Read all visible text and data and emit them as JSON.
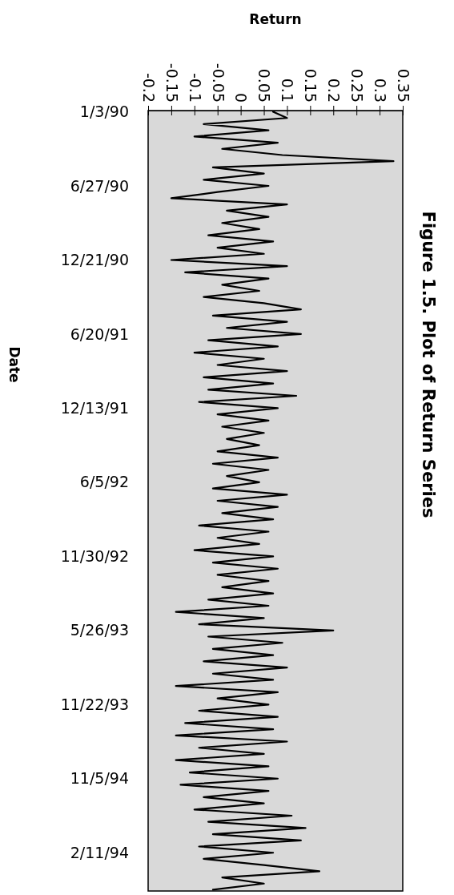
{
  "chart_data": {
    "type": "line",
    "orientation": "horizontal",
    "title": "Figure 1.5. Plot of Return Series",
    "xlabel": "Return",
    "ylabel": "Date",
    "categories": [
      "1/3/90",
      null,
      null,
      null,
      null,
      null,
      null,
      null,
      null,
      null,
      null,
      null,
      "6/27/90",
      null,
      null,
      null,
      null,
      null,
      null,
      null,
      null,
      null,
      null,
      null,
      "12/21/90",
      null,
      null,
      null,
      null,
      null,
      null,
      null,
      null,
      null,
      null,
      null,
      "6/20/91",
      null,
      null,
      null,
      null,
      null,
      null,
      null,
      null,
      null,
      null,
      null,
      "12/13/91",
      null,
      null,
      null,
      null,
      null,
      null,
      null,
      null,
      null,
      null,
      null,
      "6/5/92",
      null,
      null,
      null,
      null,
      null,
      null,
      null,
      null,
      null,
      null,
      null,
      "11/30/92",
      null,
      null,
      null,
      null,
      null,
      null,
      null,
      null,
      null,
      null,
      null,
      "5/26/93",
      null,
      null,
      null,
      null,
      null,
      null,
      null,
      null,
      null,
      null,
      null,
      "11/22/93",
      null,
      null,
      null,
      null,
      null,
      null,
      null,
      null,
      null,
      null,
      null,
      "11/5/94",
      null,
      null,
      null,
      null,
      null,
      null,
      null,
      null,
      null,
      null,
      null,
      "2/11/94",
      null,
      null,
      null,
      null,
      null,
      null
    ],
    "series": [
      {
        "color": "#000000",
        "values": [
          0.07,
          0.1,
          -0.08,
          0.06,
          -0.1,
          0.08,
          -0.04,
          0.09,
          0.33,
          -0.06,
          0.05,
          -0.08,
          0.06,
          -0.05,
          -0.15,
          0.1,
          -0.03,
          0.06,
          -0.04,
          0.04,
          -0.07,
          0.07,
          -0.05,
          0.05,
          -0.15,
          0.1,
          -0.12,
          0.06,
          -0.04,
          0.04,
          -0.08,
          0.05,
          0.13,
          -0.06,
          0.1,
          -0.03,
          0.13,
          -0.07,
          0.08,
          -0.1,
          0.05,
          -0.05,
          0.1,
          -0.08,
          0.07,
          -0.07,
          0.12,
          -0.09,
          0.08,
          -0.05,
          0.06,
          -0.04,
          0.05,
          -0.03,
          0.04,
          -0.05,
          0.08,
          -0.06,
          0.06,
          -0.03,
          0.04,
          -0.06,
          0.1,
          -0.05,
          0.08,
          -0.04,
          0.07,
          -0.09,
          0.06,
          -0.05,
          0.04,
          -0.1,
          0.07,
          -0.06,
          0.08,
          -0.05,
          0.06,
          -0.04,
          0.07,
          -0.07,
          0.06,
          -0.14,
          0.05,
          -0.09,
          0.2,
          -0.07,
          0.09,
          -0.06,
          0.07,
          -0.08,
          0.1,
          -0.06,
          0.07,
          -0.14,
          0.08,
          -0.05,
          0.06,
          -0.09,
          0.08,
          -0.12,
          0.07,
          -0.14,
          0.1,
          -0.09,
          0.05,
          -0.14,
          0.06,
          -0.11,
          0.08,
          -0.13,
          0.06,
          -0.08,
          0.05,
          -0.1,
          0.11,
          -0.07,
          0.14,
          -0.06,
          0.13,
          -0.09,
          0.07,
          -0.08,
          0.05,
          0.17,
          -0.04,
          0.05,
          -0.06
        ]
      }
    ],
    "xlim": [
      -0.2,
      0.35
    ],
    "xticks": [
      -0.2,
      -0.15,
      -0.1,
      -0.05,
      0,
      0.05,
      0.1,
      0.15,
      0.2,
      0.25,
      0.3,
      0.35
    ]
  }
}
